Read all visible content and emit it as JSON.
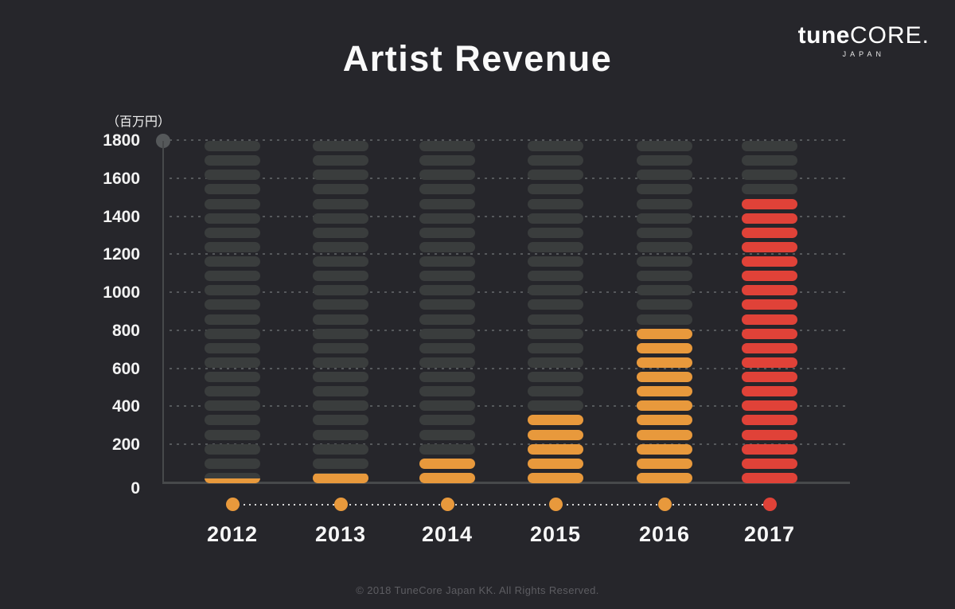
{
  "header": {
    "title": "Artist Revenue"
  },
  "logo": {
    "tune": "tune",
    "core": "CORE.",
    "japan": "JAPAN"
  },
  "chart_data": {
    "type": "bar",
    "title": "Artist Revenue",
    "unit_label": "（百万円）",
    "categories": [
      "2012",
      "2013",
      "2014",
      "2015",
      "2016",
      "2017"
    ],
    "values": [
      25,
      50,
      150,
      375,
      820,
      1500
    ],
    "bar_colors": [
      "#e8993c",
      "#e8993c",
      "#e8993c",
      "#e8993c",
      "#e8993c",
      "#e04238"
    ],
    "xlabel": "",
    "ylabel": "百万円",
    "ylim": [
      0,
      1800
    ],
    "ytick_step": 200,
    "yticks": [
      0,
      200,
      400,
      600,
      800,
      1000,
      1200,
      1400,
      1600,
      1800
    ],
    "grid": "dotted-horizontal",
    "legend": "none",
    "bar_style": "stack of rounded pill segments, unfilled segments shown in dark gray",
    "segment_value": 75,
    "segments_per_column": 24
  },
  "colors": {
    "background": "#26262b",
    "accent_orange": "#e8993c",
    "highlight_red": "#e04238",
    "empty_segment": "#3a3d3d",
    "axis": "#47494b",
    "grid_dots": "#56595c",
    "text_primary": "#fafafa",
    "text_muted": "#5d5d62"
  },
  "footer": {
    "copyright": "© 2018 TuneCore Japan KK. All Rights Reserved."
  }
}
